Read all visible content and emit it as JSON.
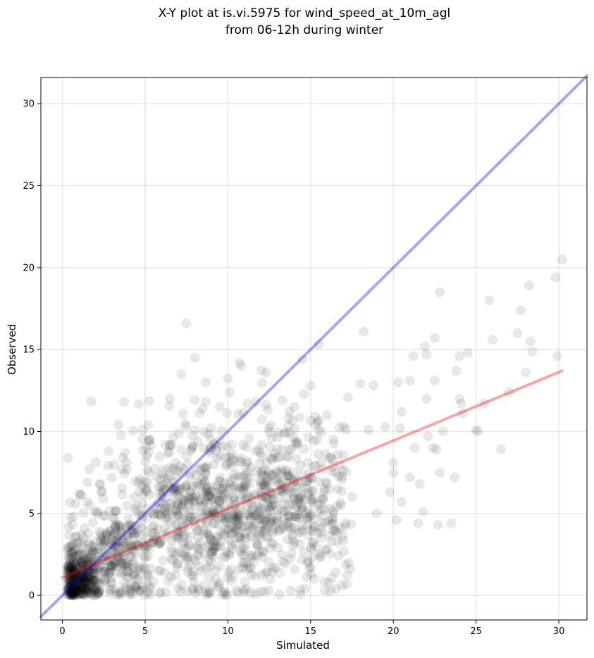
{
  "chart_data": {
    "type": "scatter",
    "title_lines": [
      "X-Y plot at is.vi.5975 for wind_speed_at_10m_agl",
      "from 06-12h during winter"
    ],
    "xlabel": "Simulated",
    "ylabel": "Observed",
    "xlim": [
      -1.3,
      31.7
    ],
    "ylim": [
      -1.5,
      31.6
    ],
    "xticks": [
      0,
      5,
      10,
      15,
      20,
      25,
      30
    ],
    "yticks": [
      0,
      5,
      10,
      15,
      20,
      25,
      30
    ],
    "grid": true,
    "colors": {
      "points": "#000000",
      "identity_line": "#0000ee",
      "fit_line": "#ee0000"
    },
    "lines": [
      {
        "kind": "identity",
        "x": [
          -1.3,
          31.7
        ],
        "y": [
          -1.3,
          31.7
        ]
      },
      {
        "kind": "fit",
        "x": [
          0.0,
          30.2
        ],
        "y": [
          1.1,
          13.7
        ]
      }
    ],
    "cloud_regions": [
      {
        "x_center": 1.0,
        "y_center": 1.0,
        "x_spread": 0.6,
        "y_spread": 0.9,
        "count": 320
      },
      {
        "x_center": 3.0,
        "y_center": 2.5,
        "x_spread": 1.5,
        "y_spread": 1.5,
        "count": 240
      },
      {
        "x_center": 8.0,
        "y_center": 5.0,
        "x_spread": 3.0,
        "y_spread": 2.8,
        "count": 650
      },
      {
        "x_center": 12.5,
        "y_center": 6.0,
        "x_spread": 2.3,
        "y_spread": 2.6,
        "count": 330
      },
      {
        "x_center": 15.5,
        "y_center": 6.0,
        "x_spread": 1.2,
        "y_spread": 2.8,
        "count": 100
      }
    ],
    "scatter_points": [
      {
        "x": 7.5,
        "y": 16.6
      },
      {
        "x": 8.0,
        "y": 14.5
      },
      {
        "x": 7.2,
        "y": 13.5
      },
      {
        "x": 6.5,
        "y": 12.0
      },
      {
        "x": 10.7,
        "y": 14.2
      },
      {
        "x": 10.8,
        "y": 14.0
      },
      {
        "x": 12.3,
        "y": 13.6
      },
      {
        "x": 15.5,
        "y": 15.3
      },
      {
        "x": 14.5,
        "y": 14.4
      },
      {
        "x": 9.5,
        "y": 11.5
      },
      {
        "x": 11.7,
        "y": 11.8
      },
      {
        "x": 13.3,
        "y": 11.9
      },
      {
        "x": 2.8,
        "y": 8.8
      },
      {
        "x": 3.8,
        "y": 8.7
      },
      {
        "x": 1.5,
        "y": 6.9
      },
      {
        "x": 0.8,
        "y": 5.6
      },
      {
        "x": 1.5,
        "y": 5.7
      },
      {
        "x": 16.9,
        "y": 0.6
      },
      {
        "x": 15.6,
        "y": 2.3
      },
      {
        "x": 16.8,
        "y": 4.1
      },
      {
        "x": 17.5,
        "y": 6.0
      },
      {
        "x": 17.0,
        "y": 10.3
      },
      {
        "x": 16.0,
        "y": 11.0
      },
      {
        "x": 18.0,
        "y": 12.9
      },
      {
        "x": 18.2,
        "y": 16.1
      },
      {
        "x": 18.8,
        "y": 12.8
      },
      {
        "x": 18.5,
        "y": 10.1
      },
      {
        "x": 19.0,
        "y": 5.0
      },
      {
        "x": 19.5,
        "y": 10.3
      },
      {
        "x": 19.8,
        "y": 6.3
      },
      {
        "x": 20.0,
        "y": 8.1
      },
      {
        "x": 20.3,
        "y": 13.0
      },
      {
        "x": 20.5,
        "y": 11.2
      },
      {
        "x": 20.5,
        "y": 5.7
      },
      {
        "x": 20.2,
        "y": 4.6
      },
      {
        "x": 20.4,
        "y": 10.2
      },
      {
        "x": 20.0,
        "y": 7.5
      },
      {
        "x": 21.0,
        "y": 13.1
      },
      {
        "x": 21.0,
        "y": 7.2
      },
      {
        "x": 21.2,
        "y": 14.6
      },
      {
        "x": 21.3,
        "y": 9.0
      },
      {
        "x": 21.5,
        "y": 4.4
      },
      {
        "x": 21.6,
        "y": 6.8
      },
      {
        "x": 21.8,
        "y": 5.1
      },
      {
        "x": 21.9,
        "y": 15.2
      },
      {
        "x": 22.0,
        "y": 14.7
      },
      {
        "x": 22.1,
        "y": 9.7
      },
      {
        "x": 22.0,
        "y": 12.0
      },
      {
        "x": 22.5,
        "y": 15.7
      },
      {
        "x": 22.4,
        "y": 9.0
      },
      {
        "x": 22.5,
        "y": 13.1
      },
      {
        "x": 22.6,
        "y": 8.9
      },
      {
        "x": 22.7,
        "y": 4.3
      },
      {
        "x": 22.8,
        "y": 18.5
      },
      {
        "x": 22.8,
        "y": 7.5
      },
      {
        "x": 23.0,
        "y": 10.0
      },
      {
        "x": 23.5,
        "y": 4.4
      },
      {
        "x": 23.7,
        "y": 7.2
      },
      {
        "x": 23.8,
        "y": 13.7
      },
      {
        "x": 24.0,
        "y": 14.6
      },
      {
        "x": 24.2,
        "y": 11.1
      },
      {
        "x": 24.1,
        "y": 11.7
      },
      {
        "x": 24.0,
        "y": 12.0
      },
      {
        "x": 24.5,
        "y": 14.8
      },
      {
        "x": 25.0,
        "y": 10.1
      },
      {
        "x": 25.1,
        "y": 10.0
      },
      {
        "x": 25.5,
        "y": 11.7
      },
      {
        "x": 25.8,
        "y": 18.0
      },
      {
        "x": 26.0,
        "y": 15.6
      },
      {
        "x": 26.5,
        "y": 8.9
      },
      {
        "x": 27.0,
        "y": 12.4
      },
      {
        "x": 27.5,
        "y": 16.0
      },
      {
        "x": 27.7,
        "y": 17.4
      },
      {
        "x": 28.0,
        "y": 13.6
      },
      {
        "x": 28.2,
        "y": 18.9
      },
      {
        "x": 28.3,
        "y": 15.5
      },
      {
        "x": 28.4,
        "y": 14.9
      },
      {
        "x": 29.8,
        "y": 19.4
      },
      {
        "x": 29.9,
        "y": 14.6
      },
      {
        "x": 30.2,
        "y": 20.5
      }
    ]
  }
}
